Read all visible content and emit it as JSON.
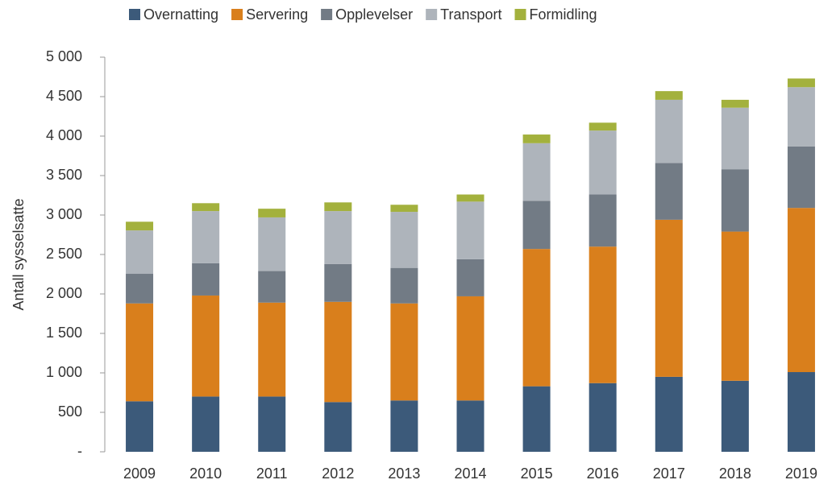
{
  "chart_data": {
    "type": "bar",
    "stacked": true,
    "y_label": "Antall sysselsatte",
    "categories": [
      "2009",
      "2010",
      "2011",
      "2012",
      "2013",
      "2014",
      "2015",
      "2016",
      "2017",
      "2018",
      "2019"
    ],
    "series": [
      {
        "name": "Overnatting",
        "color": "#3c5a7a",
        "values": [
          640,
          700,
          700,
          630,
          650,
          650,
          830,
          870,
          950,
          900,
          1010
        ]
      },
      {
        "name": "Servering",
        "color": "#d97f1c",
        "values": [
          1240,
          1280,
          1190,
          1270,
          1230,
          1320,
          1740,
          1730,
          1990,
          1890,
          2080
        ]
      },
      {
        "name": "Opplevelser",
        "color": "#727b85",
        "values": [
          375,
          410,
          400,
          480,
          450,
          470,
          610,
          660,
          720,
          790,
          780
        ]
      },
      {
        "name": "Transport",
        "color": "#aeb4bb",
        "values": [
          550,
          660,
          680,
          670,
          710,
          730,
          730,
          810,
          800,
          780,
          750
        ]
      },
      {
        "name": "Formidling",
        "color": "#a3b13d",
        "values": [
          110,
          100,
          110,
          110,
          90,
          90,
          110,
          100,
          110,
          100,
          110
        ]
      }
    ],
    "ylim": [
      0,
      5000
    ],
    "yticks": [
      {
        "value": 0,
        "label": "-"
      },
      500,
      {
        "value": 1000,
        "label": "1 000"
      },
      {
        "value": 1500,
        "label": "1 500"
      },
      {
        "value": 2000,
        "label": "2 000"
      },
      {
        "value": 2500,
        "label": "2 500"
      },
      {
        "value": 3000,
        "label": "3 000"
      },
      {
        "value": 3500,
        "label": "3 500"
      },
      {
        "value": 4000,
        "label": "4 000"
      },
      {
        "value": 4500,
        "label": "4 500"
      },
      {
        "value": 5000,
        "label": "5 000"
      }
    ],
    "legend": "top",
    "grid": false
  }
}
